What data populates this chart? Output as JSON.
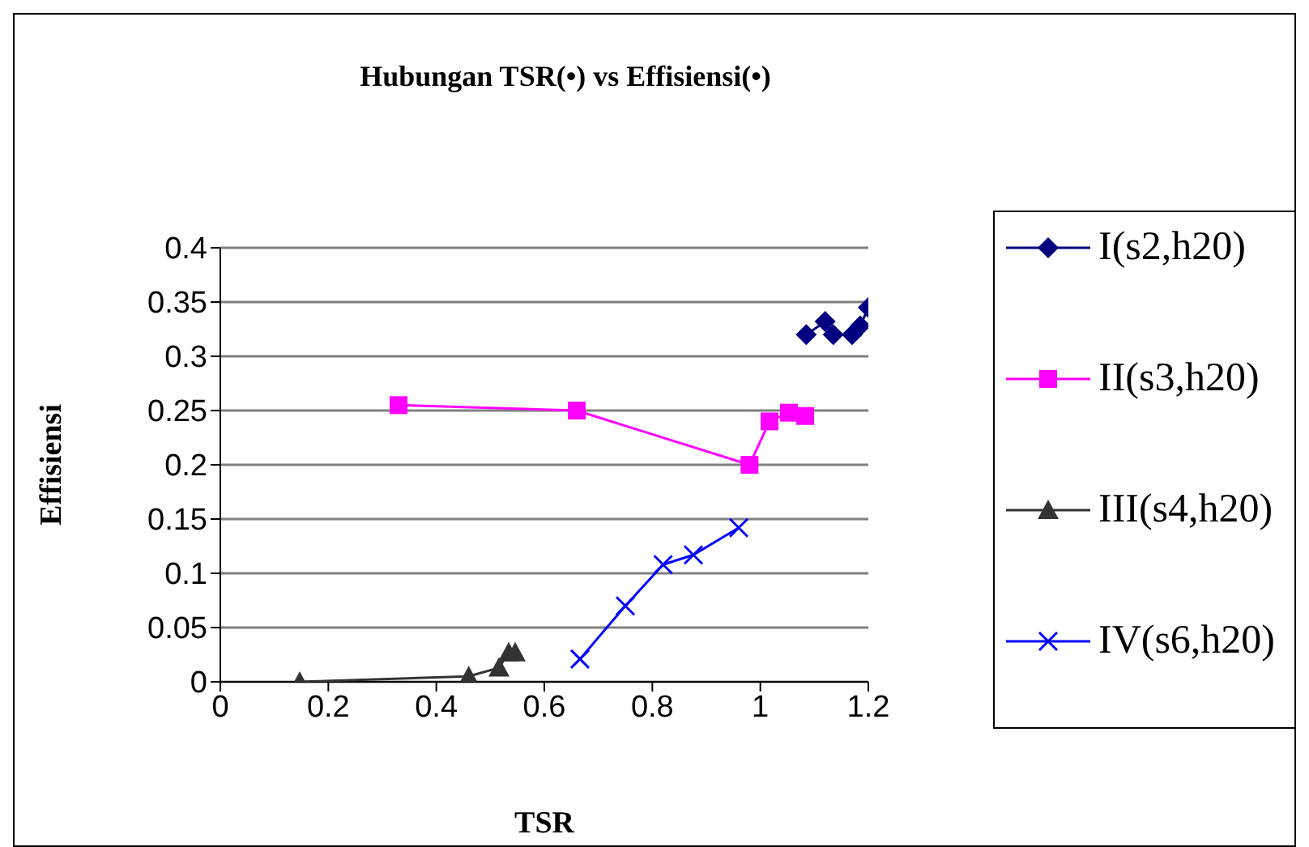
{
  "chart_data": {
    "type": "line",
    "title": "Hubungan TSR(•) vs Effisiensi(•)",
    "xlabel": "TSR",
    "ylabel": "Effisiensi",
    "xlim": [
      0,
      1.2
    ],
    "xticks": [
      0,
      0.2,
      0.4,
      0.6,
      0.8,
      1,
      1.2
    ],
    "ylim": [
      0,
      0.4
    ],
    "yticks": [
      0,
      0.05,
      0.1,
      0.15,
      0.2,
      0.25,
      0.3,
      0.35,
      0.4
    ],
    "grid": "y",
    "legend": "right",
    "line_style": "solid",
    "series": [
      {
        "name": "I(s2,h20)",
        "color": "#000080",
        "marker": "diamond",
        "x": [
          1.085,
          1.12,
          1.135,
          1.17,
          1.185,
          1.2
        ],
        "values": [
          0.32,
          0.332,
          0.32,
          0.32,
          0.328,
          0.345
        ]
      },
      {
        "name": "II(s3,h20)",
        "color": "#ff00ff",
        "marker": "square",
        "x": [
          0.33,
          0.66,
          0.98,
          1.017,
          1.053,
          1.083
        ],
        "values": [
          0.255,
          0.25,
          0.2,
          0.24,
          0.248,
          0.245
        ]
      },
      {
        "name": "III(s4,h20)",
        "color": "#333333",
        "marker": "triangle",
        "x": [
          0.147,
          0.46,
          0.516,
          0.534,
          0.546
        ],
        "values": [
          0,
          0.005,
          0.013,
          0.027,
          0.027
        ]
      },
      {
        "name": "IV(s6,h20)",
        "color": "#0000ff",
        "marker": "cross",
        "x": [
          0.666,
          0.75,
          0.82,
          0.876,
          0.96
        ],
        "values": [
          0.021,
          0.07,
          0.108,
          0.117,
          0.142
        ]
      }
    ]
  }
}
